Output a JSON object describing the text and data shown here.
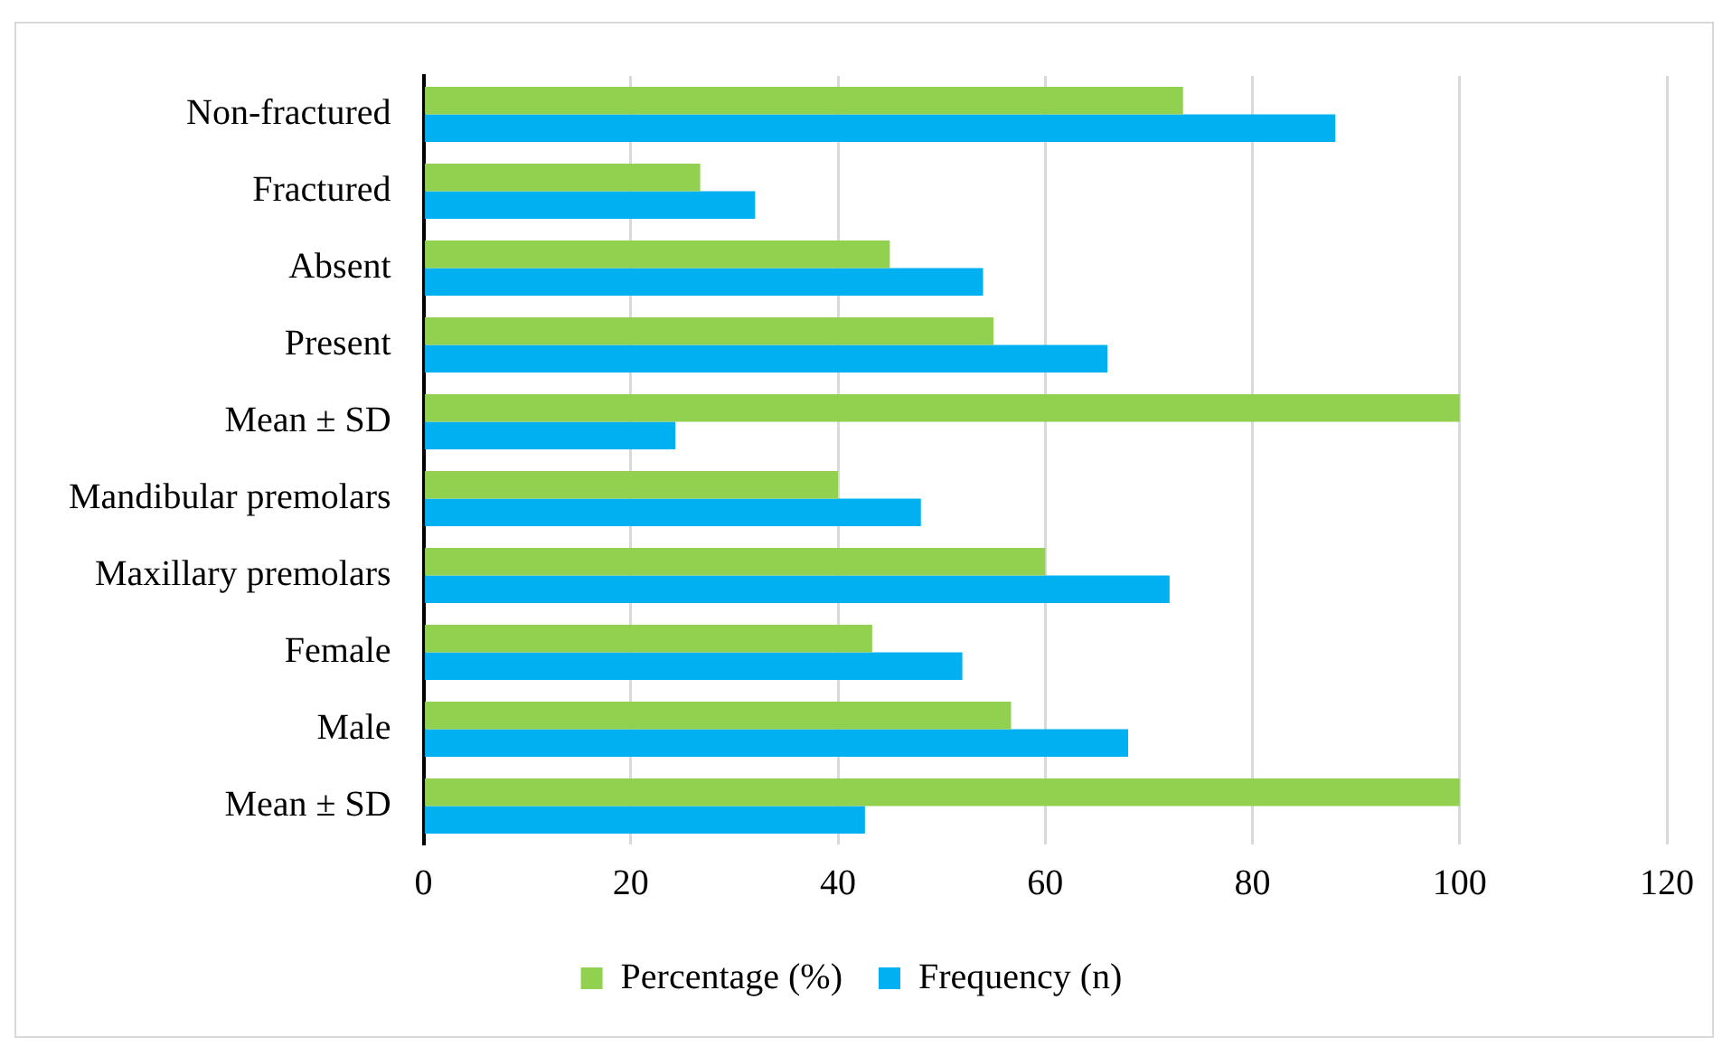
{
  "chart_data": {
    "type": "bar",
    "orientation": "horizontal",
    "categories": [
      "Non-fractured",
      "Fractured",
      "Absent",
      "Present",
      "Mean ± SD",
      "Mandibular premolars",
      "Maxillary premolars",
      "Female",
      "Male",
      "Mean ± SD"
    ],
    "series": [
      {
        "name": "Percentage (%)",
        "color": "#92d050",
        "values": [
          73.3,
          26.7,
          45,
          55,
          100,
          40,
          60,
          43.3,
          56.7,
          100
        ]
      },
      {
        "name": "Frequency (n)",
        "color": "#00b0f0",
        "values": [
          88,
          32,
          54,
          66,
          24.3,
          48,
          72,
          52,
          68,
          42.6
        ]
      }
    ],
    "xlim": [
      0,
      120
    ],
    "xticks": [
      0,
      20,
      40,
      60,
      80,
      100,
      120
    ],
    "grid": "x",
    "legend": "bottom"
  }
}
